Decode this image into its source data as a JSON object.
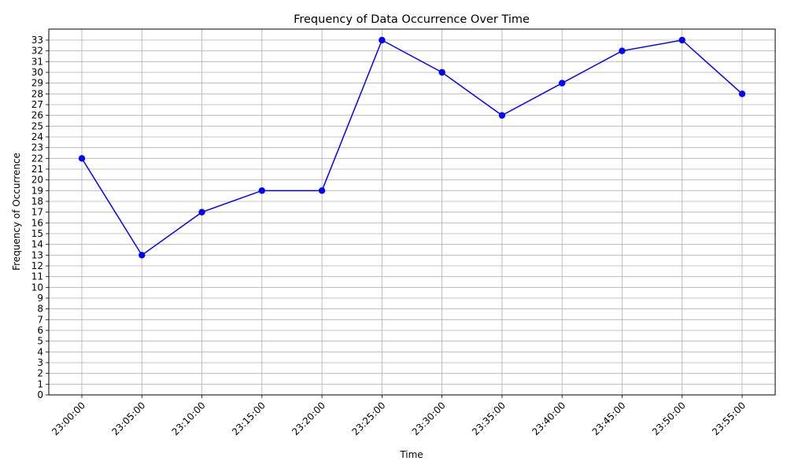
{
  "chart_data": {
    "type": "line",
    "title": "Frequency of Data Occurrence Over Time",
    "xlabel": "Time",
    "ylabel": "Frequency of Occurrence",
    "categories": [
      "23:00:00",
      "23:05:00",
      "23:10:00",
      "23:15:00",
      "23:20:00",
      "23:25:00",
      "23:30:00",
      "23:35:00",
      "23:40:00",
      "23:45:00",
      "23:50:00",
      "23:55:00"
    ],
    "series": [
      {
        "values": [
          22,
          13,
          17,
          19,
          19,
          33,
          30,
          26,
          29,
          32,
          33,
          28
        ],
        "color": "#0000ff",
        "marker": "circle"
      }
    ],
    "ylim": [
      0,
      33
    ],
    "yticks": [
      "0",
      "1",
      "2",
      "3",
      "4",
      "5",
      "6",
      "7",
      "8",
      "9",
      "10",
      "11",
      "12",
      "13",
      "14",
      "15",
      "16",
      "17",
      "18",
      "19",
      "20",
      "21",
      "22",
      "23",
      "24",
      "25",
      "26",
      "27",
      "28",
      "29",
      "30",
      "31",
      "32",
      "33"
    ],
    "x_tick_rotation_deg": 45,
    "grid": true,
    "grid_color": "#b0b0b0",
    "legend": "none"
  }
}
